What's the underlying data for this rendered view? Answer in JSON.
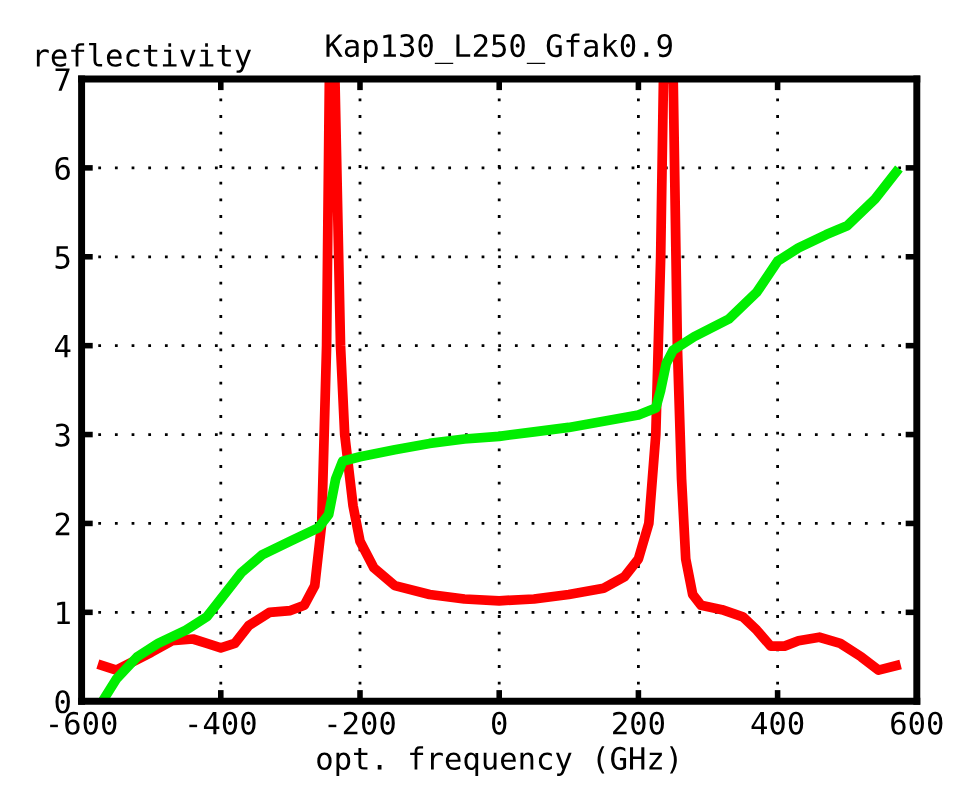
{
  "chart_data": {
    "type": "line",
    "title": "Kap130_L250_Gfak0.9",
    "xlabel": "opt. frequency (GHz)",
    "ylabel": "reflectivity",
    "xlim": [
      -600,
      600
    ],
    "xticks": [
      -600,
      -400,
      -200,
      0,
      200,
      400,
      600
    ],
    "ylim": [
      0,
      7
    ],
    "yticks": [
      0,
      1,
      2,
      3,
      4,
      5,
      6,
      7
    ],
    "grid": true,
    "marker": "none",
    "line_style": "solid",
    "series": [
      {
        "color": "#ff0000",
        "x": [
          -570,
          -550,
          -500,
          -470,
          -440,
          -420,
          -400,
          -380,
          -360,
          -330,
          -300,
          -280,
          -265,
          -255,
          -248,
          -244,
          -236,
          -228,
          -222,
          -210,
          -200,
          -180,
          -150,
          -100,
          -50,
          0,
          50,
          100,
          150,
          180,
          200,
          215,
          225,
          232,
          236,
          250,
          256,
          262,
          268,
          278,
          290,
          320,
          350,
          370,
          390,
          410,
          430,
          460,
          490,
          520,
          545,
          570
        ],
        "values": [
          0.4,
          0.35,
          0.55,
          0.68,
          0.7,
          0.65,
          0.6,
          0.65,
          0.85,
          1.0,
          1.02,
          1.08,
          1.3,
          2.0,
          4.0,
          7,
          7,
          4.0,
          3.0,
          2.2,
          1.8,
          1.5,
          1.3,
          1.2,
          1.15,
          1.13,
          1.15,
          1.2,
          1.27,
          1.4,
          1.6,
          2.0,
          3.0,
          5.0,
          7,
          7,
          4.0,
          2.5,
          1.6,
          1.2,
          1.08,
          1.03,
          0.95,
          0.8,
          0.62,
          0.62,
          0.68,
          0.72,
          0.65,
          0.5,
          0.35,
          0.4
        ]
      },
      {
        "color": "#00ee00",
        "x": [
          -570,
          -550,
          -520,
          -490,
          -450,
          -420,
          -400,
          -370,
          -340,
          -300,
          -260,
          -245,
          -235,
          -225,
          -200,
          -150,
          -100,
          -50,
          0,
          50,
          100,
          150,
          200,
          225,
          232,
          240,
          250,
          280,
          330,
          370,
          400,
          430,
          470,
          500,
          540,
          570
        ],
        "values": [
          0,
          0.25,
          0.5,
          0.65,
          0.8,
          0.95,
          1.15,
          1.45,
          1.65,
          1.8,
          1.95,
          2.1,
          2.5,
          2.7,
          2.75,
          2.83,
          2.9,
          2.95,
          2.98,
          3.03,
          3.08,
          3.15,
          3.22,
          3.3,
          3.5,
          3.8,
          3.95,
          4.1,
          4.3,
          4.6,
          4.95,
          5.1,
          5.25,
          5.35,
          5.65,
          5.95
        ]
      }
    ]
  }
}
